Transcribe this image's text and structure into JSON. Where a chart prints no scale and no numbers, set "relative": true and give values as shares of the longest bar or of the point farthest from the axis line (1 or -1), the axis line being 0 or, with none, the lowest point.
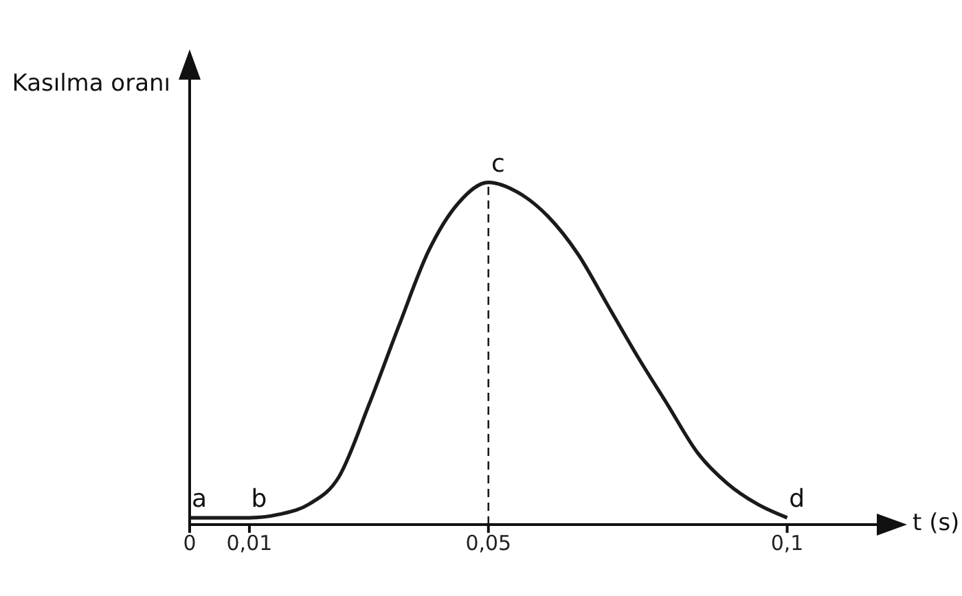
{
  "chart_data": {
    "type": "line",
    "relative": true,
    "ylabel": "Kasılma oranı",
    "xlabel": "t (s)",
    "x": [
      0,
      0.01,
      0.015,
      0.02,
      0.025,
      0.03,
      0.035,
      0.04,
      0.045,
      0.05,
      0.055,
      0.06,
      0.065,
      0.07,
      0.075,
      0.08,
      0.085,
      0.09,
      0.095,
      0.1
    ],
    "series": [
      {
        "color": "#1a1a1a",
        "values": [
          0.02,
          0.02,
          0.03,
          0.06,
          0.14,
          0.35,
          0.58,
          0.8,
          0.94,
          1,
          0.97,
          0.9,
          0.79,
          0.64,
          0.49,
          0.35,
          0.21,
          0.12,
          0.06,
          0.02
        ]
      }
    ],
    "xlim": [
      0,
      0.115
    ],
    "xticks": [
      0,
      {
        "value": 0.01,
        "label": "0,01"
      },
      {
        "value": 0.05,
        "label": "0,05"
      },
      {
        "value": 0.1,
        "label": "0,1"
      }
    ],
    "ref_lines": [
      {
        "axis": "x",
        "value": 0.05,
        "line_style": "dashed",
        "color": "#1a1a1a"
      }
    ],
    "annotations": [
      {
        "text": "a",
        "x": 0,
        "y": 0.02
      },
      {
        "text": "b",
        "x": 0.01,
        "y": 0.02
      },
      {
        "text": "c",
        "x": 0.05,
        "y": 1
      },
      {
        "text": "d",
        "x": 0.1,
        "y": 0.02
      }
    ],
    "grid": false,
    "legend": false,
    "marker": "none",
    "line_style": "solid"
  }
}
